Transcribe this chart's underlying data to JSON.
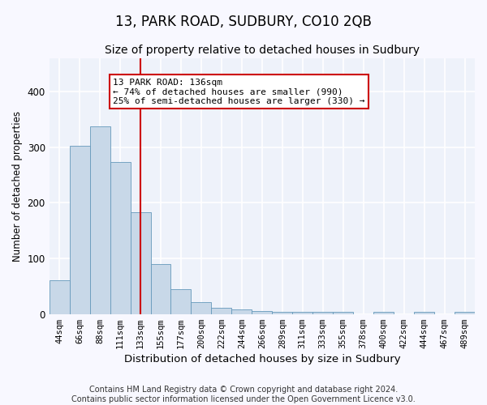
{
  "title": "13, PARK ROAD, SUDBURY, CO10 2QB",
  "subtitle": "Size of property relative to detached houses in Sudbury",
  "xlabel": "Distribution of detached houses by size in Sudbury",
  "ylabel": "Number of detached properties",
  "categories": [
    "44sqm",
    "66sqm",
    "88sqm",
    "111sqm",
    "133sqm",
    "155sqm",
    "177sqm",
    "200sqm",
    "222sqm",
    "244sqm",
    "266sqm",
    "289sqm",
    "311sqm",
    "333sqm",
    "355sqm",
    "378sqm",
    "400sqm",
    "422sqm",
    "444sqm",
    "467sqm",
    "489sqm"
  ],
  "values": [
    60,
    302,
    337,
    273,
    183,
    90,
    45,
    22,
    11,
    8,
    5,
    4,
    4,
    4,
    4,
    0,
    4,
    0,
    4,
    0,
    4
  ],
  "bar_color": "#c8d8e8",
  "bar_edge_color": "#6699bb",
  "reference_line_x": 4.0,
  "reference_line_color": "#cc0000",
  "ylim": [
    0,
    460
  ],
  "annotation_line1": "13 PARK ROAD: 136sqm",
  "annotation_line2": "← 74% of detached houses are smaller (990)",
  "annotation_line3": "25% of semi-detached houses are larger (330) →",
  "annotation_box_color": "#ffffff",
  "annotation_box_edge": "#cc0000",
  "footer_line1": "Contains HM Land Registry data © Crown copyright and database right 2024.",
  "footer_line2": "Contains public sector information licensed under the Open Government Licence v3.0.",
  "background_color": "#eef2fa",
  "grid_color": "#ffffff",
  "title_fontsize": 12,
  "subtitle_fontsize": 10,
  "xlabel_fontsize": 9.5,
  "ylabel_fontsize": 8.5,
  "tick_fontsize": 7.5,
  "footer_fontsize": 7,
  "annotation_fontsize": 8
}
